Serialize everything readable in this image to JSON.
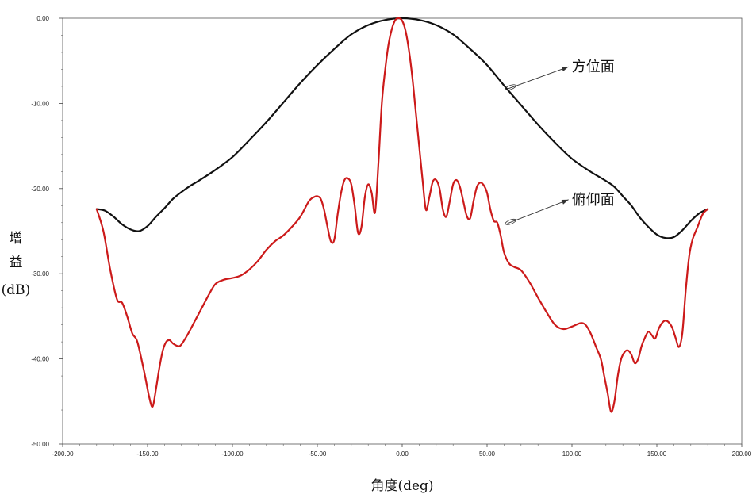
{
  "chart_data": {
    "type": "line",
    "title": "",
    "xlabel": "角度(deg)",
    "ylabel": [
      "增",
      "益",
      "(dB)"
    ],
    "xlim": [
      -200,
      200
    ],
    "ylim": [
      -50,
      0
    ],
    "xticks": [
      "-200.00",
      "-150.00",
      "-100.00",
      "-50.00",
      "0.00",
      "50.00",
      "100.00",
      "150.00",
      "200.00"
    ],
    "yticks": [
      "0.00",
      "-10.00",
      "-20.00",
      "-30.00",
      "-40.00",
      "-50.00"
    ],
    "grid": false,
    "colors": {
      "azimuth": "#111111",
      "elevation": "#cc1a1a"
    },
    "series": [
      {
        "key": "azimuth",
        "x": [
          -180,
          -175,
          -170,
          -165,
          -160,
          -155,
          -150,
          -145,
          -140,
          -135,
          -130,
          -125,
          -120,
          -110,
          -100,
          -90,
          -80,
          -70,
          -60,
          -50,
          -40,
          -30,
          -20,
          -10,
          0,
          10,
          20,
          30,
          40,
          50,
          60,
          70,
          80,
          90,
          100,
          110,
          120,
          125,
          130,
          135,
          140,
          145,
          150,
          155,
          160,
          165,
          170,
          175,
          180
        ],
        "y": [
          -22.4,
          -22.6,
          -23.3,
          -24.2,
          -24.8,
          -25.0,
          -24.4,
          -23.3,
          -22.3,
          -21.2,
          -20.4,
          -19.7,
          -19.1,
          -17.8,
          -16.3,
          -14.3,
          -12.2,
          -9.9,
          -7.6,
          -5.5,
          -3.6,
          -1.9,
          -0.8,
          -0.2,
          0.0,
          -0.2,
          -0.8,
          -1.9,
          -3.6,
          -5.5,
          -7.9,
          -10.2,
          -12.5,
          -14.6,
          -16.5,
          -17.9,
          -19.1,
          -19.8,
          -20.9,
          -22.0,
          -23.4,
          -24.5,
          -25.4,
          -25.8,
          -25.7,
          -24.9,
          -23.8,
          -22.9,
          -22.4
        ]
      },
      {
        "key": "elevation",
        "x": [
          -180,
          -176,
          -172,
          -168,
          -165,
          -162,
          -159,
          -156,
          -152,
          -149,
          -147,
          -145,
          -143,
          -141,
          -139,
          -137,
          -135,
          -132,
          -130,
          -126,
          -122,
          -118,
          -114,
          -110,
          -105,
          -100,
          -95,
          -90,
          -85,
          -80,
          -75,
          -70,
          -65,
          -60,
          -55,
          -52,
          -50,
          -48,
          -46,
          -44,
          -42,
          -40,
          -38,
          -36,
          -34,
          -32,
          -30,
          -28,
          -26,
          -24,
          -22,
          -20,
          -18,
          -16,
          -14,
          -12,
          -10,
          -8,
          -6,
          -4,
          -2,
          0,
          2,
          4,
          6,
          8,
          10,
          12,
          14,
          16,
          18,
          20,
          22,
          24,
          26,
          28,
          30,
          32,
          34,
          36,
          38,
          40,
          42,
          44,
          46,
          48,
          50,
          52,
          54,
          56,
          58,
          60,
          63,
          66,
          70,
          75,
          80,
          85,
          90,
          95,
          100,
          105,
          108,
          111,
          114,
          117,
          119,
          121,
          123,
          125,
          127,
          129,
          131,
          133,
          135,
          137,
          139,
          141,
          143,
          145,
          147,
          149,
          151,
          153,
          155,
          157,
          159,
          161,
          163,
          165,
          167,
          169,
          171,
          174,
          177,
          180
        ],
        "y": [
          -22.4,
          -25.0,
          -29.5,
          -33.0,
          -33.4,
          -35.0,
          -37.0,
          -38.0,
          -41.5,
          -44.5,
          -45.6,
          -43.5,
          -41.0,
          -39.0,
          -38.0,
          -37.8,
          -38.2,
          -38.5,
          -38.3,
          -37.0,
          -35.5,
          -34.0,
          -32.5,
          -31.2,
          -30.7,
          -30.5,
          -30.2,
          -29.5,
          -28.5,
          -27.2,
          -26.2,
          -25.5,
          -24.5,
          -23.3,
          -21.5,
          -21.0,
          -20.9,
          -21.2,
          -22.5,
          -24.5,
          -26.2,
          -26.0,
          -23.0,
          -20.5,
          -19.0,
          -18.8,
          -19.5,
          -22.0,
          -25.2,
          -24.5,
          -21.0,
          -19.5,
          -20.5,
          -22.8,
          -17.0,
          -10.0,
          -6.0,
          -3.0,
          -1.2,
          -0.2,
          0.0,
          -0.3,
          -1.5,
          -3.8,
          -7.0,
          -11.0,
          -15.0,
          -19.0,
          -22.5,
          -21.0,
          -19.2,
          -19.0,
          -20.0,
          -22.5,
          -23.3,
          -21.5,
          -19.5,
          -19.0,
          -19.8,
          -21.5,
          -23.2,
          -23.5,
          -21.5,
          -19.8,
          -19.3,
          -19.6,
          -20.5,
          -22.5,
          -23.8,
          -24.0,
          -25.5,
          -27.5,
          -28.8,
          -29.2,
          -29.6,
          -31.0,
          -32.8,
          -34.5,
          -36.0,
          -36.5,
          -36.2,
          -35.8,
          -36.0,
          -37.0,
          -38.5,
          -40.0,
          -42.0,
          -44.0,
          -46.2,
          -45.0,
          -42.0,
          -40.0,
          -39.2,
          -39.0,
          -39.5,
          -40.5,
          -40.0,
          -38.5,
          -37.5,
          -36.8,
          -37.2,
          -37.6,
          -36.5,
          -35.8,
          -35.5,
          -35.7,
          -36.3,
          -37.5,
          -38.6,
          -37.0,
          -32.0,
          -28.0,
          -26.0,
          -24.5,
          -23.0,
          -22.4
        ]
      }
    ],
    "annotations": [
      {
        "key": "azimuth",
        "text": "方位面",
        "from": [
          62,
          -8.3
        ],
        "to": [
          98,
          -5.7
        ]
      },
      {
        "key": "elevation",
        "text": "俯仰面",
        "from": [
          62,
          -24.1
        ],
        "to": [
          98,
          -21.3
        ]
      }
    ]
  }
}
